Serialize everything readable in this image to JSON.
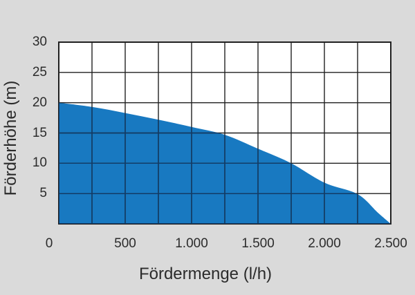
{
  "chart_data": {
    "type": "area",
    "title": "",
    "xlabel": "Fördermenge (l/h)",
    "ylabel": "Förderhöhe (m)",
    "xlim": [
      0,
      2500
    ],
    "ylim": [
      0,
      30
    ],
    "x_grid_step": 250,
    "y_grid_step": 5,
    "grid": true,
    "legend": false,
    "x_ticks": [
      {
        "label": "0",
        "value": 0
      },
      {
        "label": "500",
        "value": 500
      },
      {
        "label": "1.000",
        "value": 1000
      },
      {
        "label": "1.500",
        "value": 1500
      },
      {
        "label": "2.000",
        "value": 2000
      },
      {
        "label": "2.500",
        "value": 2500
      }
    ],
    "y_ticks": [
      {
        "label": "30",
        "value": 30
      },
      {
        "label": "25",
        "value": 25
      },
      {
        "label": "20",
        "value": 20
      },
      {
        "label": "15",
        "value": 15
      },
      {
        "label": "10",
        "value": 10
      },
      {
        "label": "5",
        "value": 5
      }
    ],
    "series": [
      {
        "points": [
          [
            0,
            20.0
          ],
          [
            250,
            19.3
          ],
          [
            500,
            18.3
          ],
          [
            750,
            17.2
          ],
          [
            1000,
            16.0
          ],
          [
            1250,
            14.7
          ],
          [
            1500,
            12.4
          ],
          [
            1750,
            10.0
          ],
          [
            2000,
            6.8
          ],
          [
            2250,
            4.9
          ],
          [
            2400,
            1.9
          ],
          [
            2500,
            0
          ]
        ]
      }
    ],
    "colors": {
      "page_bg": "#dadada",
      "plot_bg": "#ffffff",
      "fill": "#1879c1",
      "grid": "#1f1f1f",
      "grid_over_fill": "#123c68",
      "text": "#2b2b2b"
    }
  }
}
